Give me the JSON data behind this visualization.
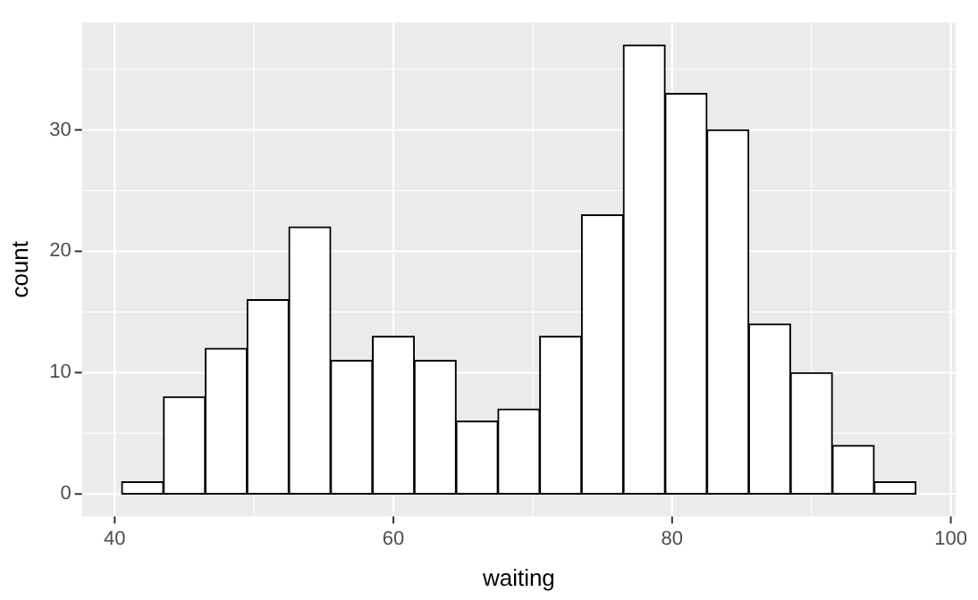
{
  "chart_data": {
    "type": "histogram",
    "xlabel": "waiting",
    "ylabel": "count",
    "bins": [
      40.5,
      43.5,
      46.5,
      49.5,
      52.5,
      55.5,
      58.5,
      61.5,
      64.5,
      67.5,
      70.5,
      73.5,
      76.5,
      79.5,
      82.5,
      85.5,
      88.5,
      91.5,
      94.5,
      97.5
    ],
    "values": [
      1,
      8,
      12,
      16,
      22,
      11,
      13,
      11,
      6,
      7,
      13,
      23,
      37,
      33,
      30,
      14,
      10,
      4,
      1
    ],
    "color": "#ffffff",
    "xlim": [
      37.65,
      100.35
    ],
    "ylim": [
      -1.85,
      38.85
    ],
    "xticks": [
      40,
      {
        "value": 50,
        "label": null
      },
      60,
      {
        "value": 70,
        "label": null
      },
      80,
      {
        "value": 90,
        "label": null
      },
      100
    ],
    "yticks": [
      0,
      {
        "value": 5,
        "label": null
      },
      10,
      {
        "value": 15,
        "label": null
      },
      20,
      {
        "value": 25,
        "label": null
      },
      30,
      {
        "value": 35,
        "label": null
      }
    ],
    "grid": true
  }
}
